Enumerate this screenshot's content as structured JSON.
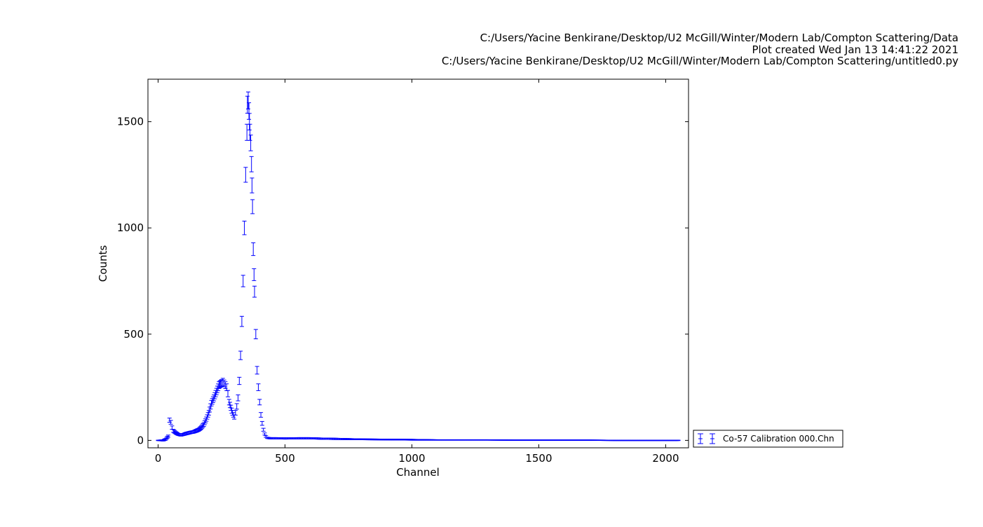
{
  "header": {
    "line1": "C:/Users/Yacine Benkirane/Desktop/U2 McGill/Winter/Modern Lab/Compton Scattering/Data",
    "line2": "Plot created Wed Jan 13 14:41:22 2021",
    "line3": "C:/Users/Yacine Benkirane/Desktop/U2 McGill/Winter/Modern Lab/Compton Scattering/untitled0.py"
  },
  "chart_data": {
    "type": "scatter",
    "xlabel": "Channel",
    "ylabel": "Counts",
    "xlim": [
      -40,
      2090
    ],
    "ylim": [
      -35,
      1700
    ],
    "xticks": [
      0,
      500,
      1000,
      1500,
      2000
    ],
    "yticks": [
      0,
      500,
      1000,
      1500
    ],
    "grid": false,
    "legend_position": "outside-right-bottom",
    "marker": "errorbar",
    "color": "#0000ff",
    "series": [
      {
        "name": "Co-57 Calibration 000.Chn",
        "x": [
          0,
          10,
          20,
          30,
          40,
          45,
          50,
          55,
          60,
          70,
          80,
          90,
          100,
          110,
          120,
          130,
          140,
          150,
          160,
          170,
          180,
          190,
          200,
          210,
          220,
          230,
          240,
          250,
          255,
          260,
          265,
          270,
          275,
          280,
          290,
          300,
          305,
          310,
          315,
          320,
          325,
          330,
          335,
          340,
          345,
          350,
          352,
          355,
          358,
          360,
          362,
          365,
          368,
          370,
          372,
          375,
          378,
          380,
          385,
          390,
          395,
          400,
          405,
          410,
          415,
          420,
          425,
          430,
          440,
          450,
          470,
          500,
          550,
          600,
          650,
          700,
          800,
          900,
          1000,
          1100,
          1200,
          1300,
          1400,
          1500,
          1600,
          1700,
          1800,
          1900,
          2000,
          2050
        ],
        "y": [
          0,
          0,
          0,
          5,
          20,
          95,
          85,
          60,
          45,
          35,
          28,
          25,
          28,
          32,
          35,
          38,
          40,
          45,
          50,
          60,
          75,
          100,
          130,
          175,
          200,
          230,
          260,
          270,
          275,
          268,
          260,
          250,
          220,
          180,
          140,
          110,
          130,
          160,
          200,
          280,
          400,
          560,
          750,
          1000,
          1250,
          1450,
          1580,
          1600,
          1550,
          1500,
          1450,
          1400,
          1300,
          1200,
          1100,
          900,
          780,
          700,
          500,
          330,
          250,
          180,
          120,
          80,
          50,
          30,
          18,
          12,
          10,
          10,
          10,
          9,
          10,
          10,
          8,
          7,
          5,
          4,
          3,
          2,
          2,
          2,
          1,
          1,
          1,
          1,
          0,
          0,
          0,
          0
        ],
        "err": [
          1,
          2,
          3,
          4,
          5,
          10,
          9,
          8,
          7,
          6,
          5,
          5,
          5,
          6,
          6,
          6,
          6,
          7,
          7,
          8,
          9,
          10,
          11,
          13,
          14,
          15,
          16,
          16,
          17,
          16,
          16,
          16,
          15,
          13,
          12,
          10,
          11,
          13,
          14,
          17,
          20,
          24,
          27,
          32,
          35,
          38,
          40,
          40,
          39,
          39,
          38,
          37,
          36,
          35,
          33,
          30,
          28,
          26,
          22,
          18,
          16,
          13,
          11,
          9,
          7,
          5,
          4,
          3,
          3,
          3,
          3,
          3,
          3,
          3,
          3,
          3,
          2,
          2,
          2,
          1,
          1,
          1,
          1,
          1,
          1,
          1,
          1,
          1,
          1,
          1
        ]
      }
    ]
  }
}
